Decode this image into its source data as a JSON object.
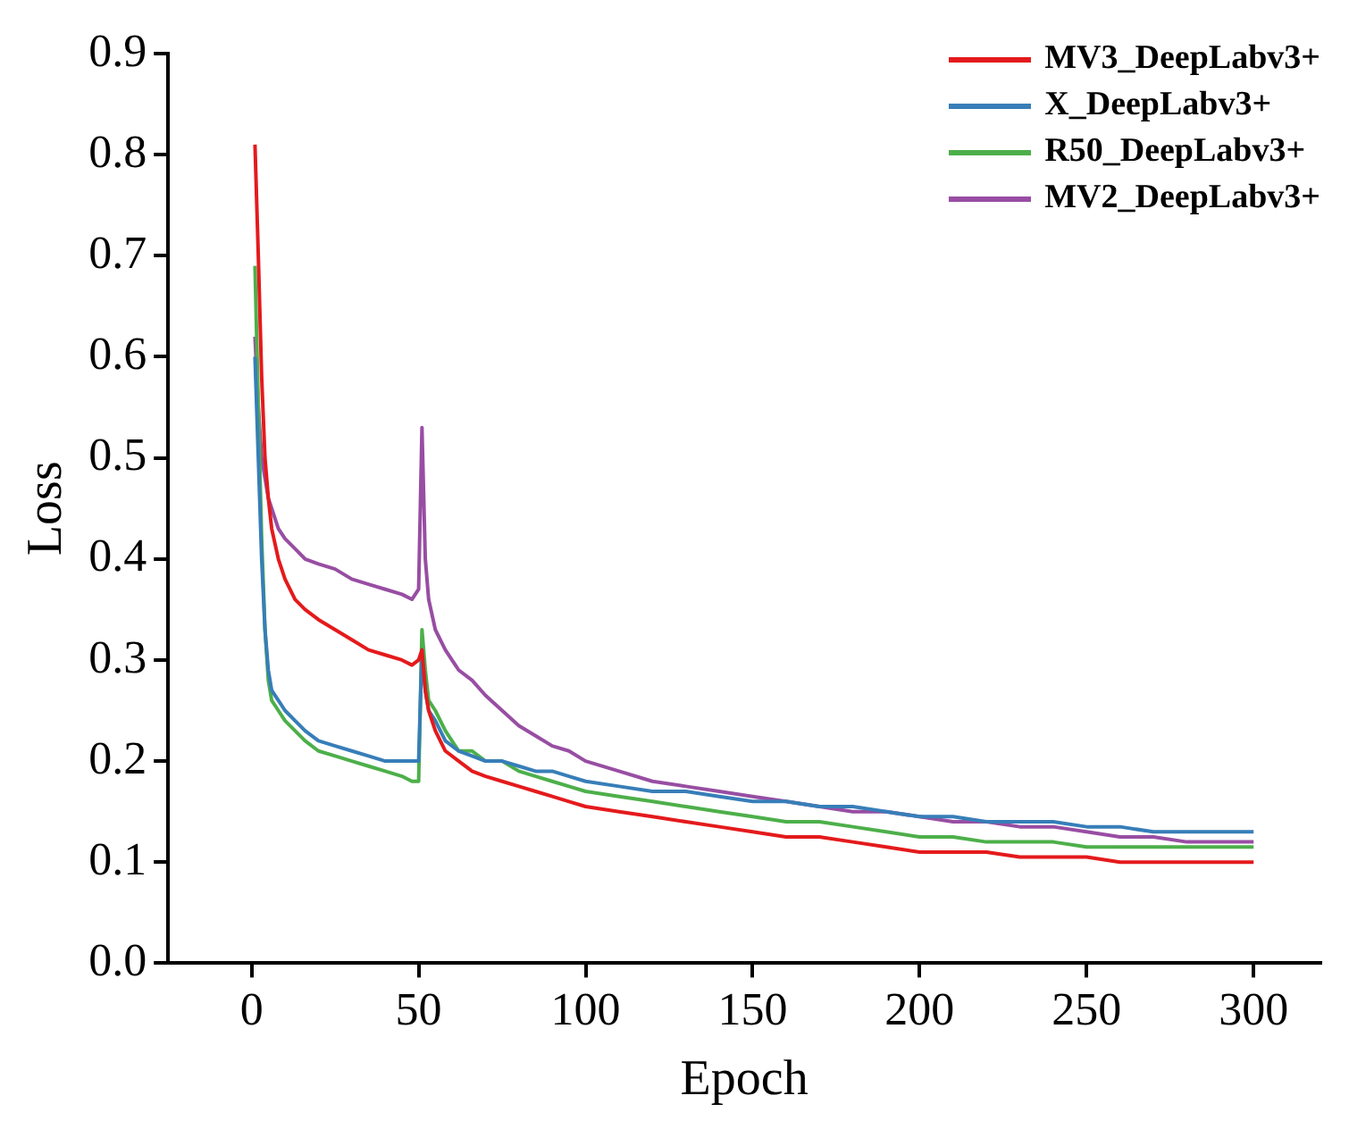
{
  "chart_data": {
    "type": "line",
    "xlabel": "Epoch",
    "ylabel": "Loss",
    "x": [
      1,
      2,
      3,
      4,
      5,
      6,
      8,
      10,
      13,
      16,
      20,
      25,
      30,
      35,
      40,
      45,
      48,
      50,
      51,
      52,
      53,
      55,
      58,
      62,
      66,
      70,
      75,
      80,
      85,
      90,
      95,
      100,
      110,
      120,
      130,
      140,
      150,
      160,
      170,
      180,
      190,
      200,
      210,
      220,
      230,
      240,
      250,
      260,
      270,
      280,
      290,
      300
    ],
    "xlim": [
      -25,
      320
    ],
    "xticks": [
      0,
      50,
      100,
      150,
      200,
      250,
      300
    ],
    "ylim": [
      0,
      0.9
    ],
    "yticks": [
      {
        "value": 0,
        "label": "0.0"
      },
      0.1,
      0.2,
      0.3,
      0.4,
      0.5,
      0.6,
      0.7,
      0.8,
      0.9
    ],
    "grid": false,
    "legend": "top right",
    "marker": "none",
    "line_style": "solid",
    "series": [
      {
        "name": "MV3_DeepLabv3+",
        "color": "#e41a1c",
        "values": [
          0.81,
          0.7,
          0.58,
          0.5,
          0.46,
          0.43,
          0.4,
          0.38,
          0.36,
          0.35,
          0.34,
          0.33,
          0.32,
          0.31,
          0.305,
          0.3,
          0.295,
          0.3,
          0.31,
          0.27,
          0.25,
          0.23,
          0.21,
          0.2,
          0.19,
          0.185,
          0.18,
          0.175,
          0.17,
          0.165,
          0.16,
          0.155,
          0.15,
          0.145,
          0.14,
          0.135,
          0.13,
          0.125,
          0.125,
          0.12,
          0.115,
          0.11,
          0.11,
          0.11,
          0.105,
          0.105,
          0.105,
          0.1,
          0.1,
          0.1,
          0.1,
          0.1
        ]
      },
      {
        "name": "X_DeepLabv3+",
        "color": "#377eb8",
        "values": [
          0.6,
          0.5,
          0.4,
          0.33,
          0.29,
          0.27,
          0.26,
          0.25,
          0.24,
          0.23,
          0.22,
          0.215,
          0.21,
          0.205,
          0.2,
          0.2,
          0.2,
          0.2,
          0.31,
          0.27,
          0.25,
          0.24,
          0.22,
          0.21,
          0.205,
          0.2,
          0.2,
          0.195,
          0.19,
          0.19,
          0.185,
          0.18,
          0.175,
          0.17,
          0.17,
          0.165,
          0.16,
          0.16,
          0.155,
          0.155,
          0.15,
          0.145,
          0.145,
          0.14,
          0.14,
          0.14,
          0.135,
          0.135,
          0.13,
          0.13,
          0.13,
          0.13
        ]
      },
      {
        "name": "R50_DeepLabv3+",
        "color": "#4daf4a",
        "values": [
          0.69,
          0.55,
          0.42,
          0.33,
          0.28,
          0.26,
          0.25,
          0.24,
          0.23,
          0.22,
          0.21,
          0.205,
          0.2,
          0.195,
          0.19,
          0.185,
          0.18,
          0.18,
          0.33,
          0.29,
          0.26,
          0.25,
          0.23,
          0.21,
          0.21,
          0.2,
          0.2,
          0.19,
          0.185,
          0.18,
          0.175,
          0.17,
          0.165,
          0.16,
          0.155,
          0.15,
          0.145,
          0.14,
          0.14,
          0.135,
          0.13,
          0.125,
          0.125,
          0.12,
          0.12,
          0.12,
          0.115,
          0.115,
          0.115,
          0.115,
          0.115,
          0.115
        ]
      },
      {
        "name": "MV2_DeepLabv3+",
        "color": "#984ea3",
        "values": [
          0.62,
          0.55,
          0.5,
          0.48,
          0.46,
          0.45,
          0.43,
          0.42,
          0.41,
          0.4,
          0.395,
          0.39,
          0.38,
          0.375,
          0.37,
          0.365,
          0.36,
          0.37,
          0.53,
          0.4,
          0.36,
          0.33,
          0.31,
          0.29,
          0.28,
          0.265,
          0.25,
          0.235,
          0.225,
          0.215,
          0.21,
          0.2,
          0.19,
          0.18,
          0.175,
          0.17,
          0.165,
          0.16,
          0.155,
          0.15,
          0.15,
          0.145,
          0.14,
          0.14,
          0.135,
          0.135,
          0.13,
          0.125,
          0.125,
          0.12,
          0.12,
          0.12
        ]
      }
    ]
  }
}
